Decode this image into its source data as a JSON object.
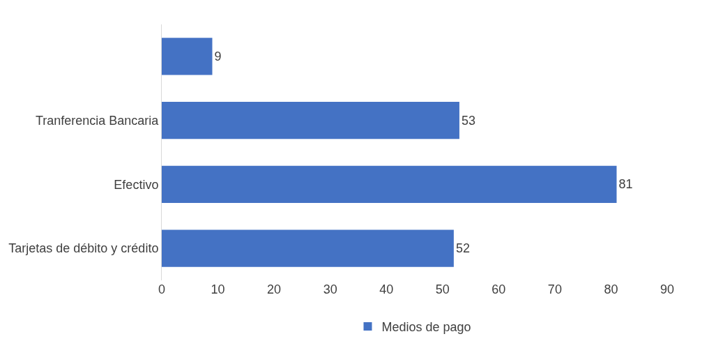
{
  "chart_data": {
    "type": "bar",
    "orientation": "horizontal",
    "categories": [
      null,
      "Tranferencia Bancaria",
      "Efectivo",
      "Tarjetas de débito y crédito"
    ],
    "series": [
      {
        "name": "Medios de pago",
        "color": "#4472c4",
        "values": [
          9,
          53,
          81,
          52
        ]
      }
    ],
    "xlim": [
      0,
      90
    ],
    "xticks": [
      0,
      10,
      20,
      30,
      40,
      50,
      60,
      70,
      80,
      90
    ],
    "data_labels": true,
    "grid": false,
    "legend": "bottom"
  }
}
